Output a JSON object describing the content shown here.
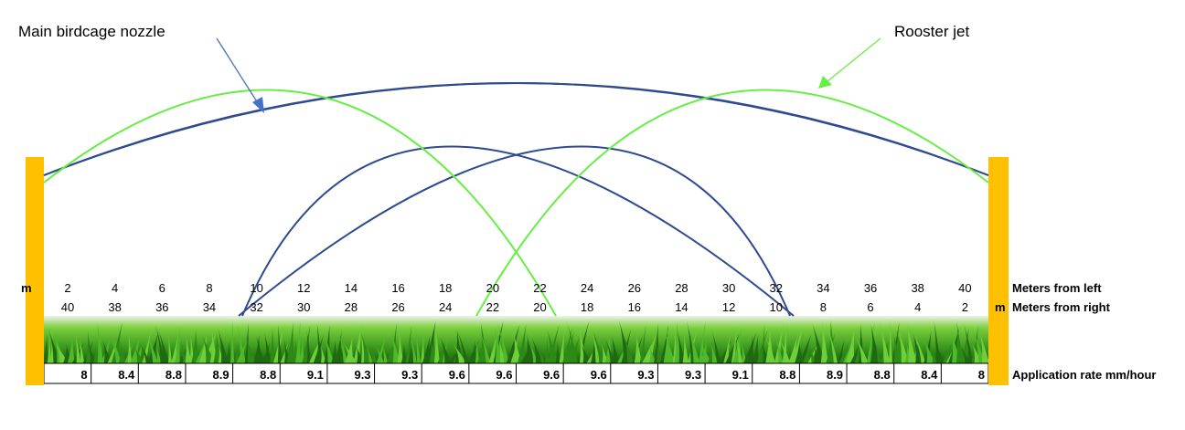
{
  "callouts": {
    "main_nozzle": "Main birdcage nozzle",
    "rooster_jet": "Rooster jet"
  },
  "units": {
    "left": "m",
    "right": "m"
  },
  "row_labels": {
    "from_left": "Meters from left",
    "from_right": "Meters from right",
    "application_rate": "Application rate mm/hour"
  },
  "meters_from_left": [
    "2",
    "4",
    "6",
    "8",
    "10",
    "12",
    "14",
    "16",
    "18",
    "20",
    "22",
    "24",
    "26",
    "28",
    "30",
    "32",
    "34",
    "36",
    "38",
    "40"
  ],
  "meters_from_right": [
    "40",
    "38",
    "36",
    "34",
    "32",
    "30",
    "28",
    "26",
    "24",
    "22",
    "20",
    "18",
    "16",
    "14",
    "12",
    "10",
    "8",
    "6",
    "4",
    "2"
  ],
  "application_rates": [
    "8",
    "8.4",
    "8.8",
    "8.9",
    "8.8",
    "9.1",
    "9.3",
    "9.3",
    "9.6",
    "9.6",
    "9.6",
    "9.6",
    "9.3",
    "9.3",
    "9.1",
    "8.8",
    "8.9",
    "8.8",
    "8.4",
    "8"
  ],
  "colors": {
    "post": "#ffc000",
    "main_nozzle_curve": "#2f4b8f",
    "rooster_jet_curve": "#66ee44",
    "main_arrow": "#4472c4",
    "rooster_arrow": "#66ee44",
    "grass_dark": "#1f6a10",
    "grass_light": "#4fb82b"
  }
}
